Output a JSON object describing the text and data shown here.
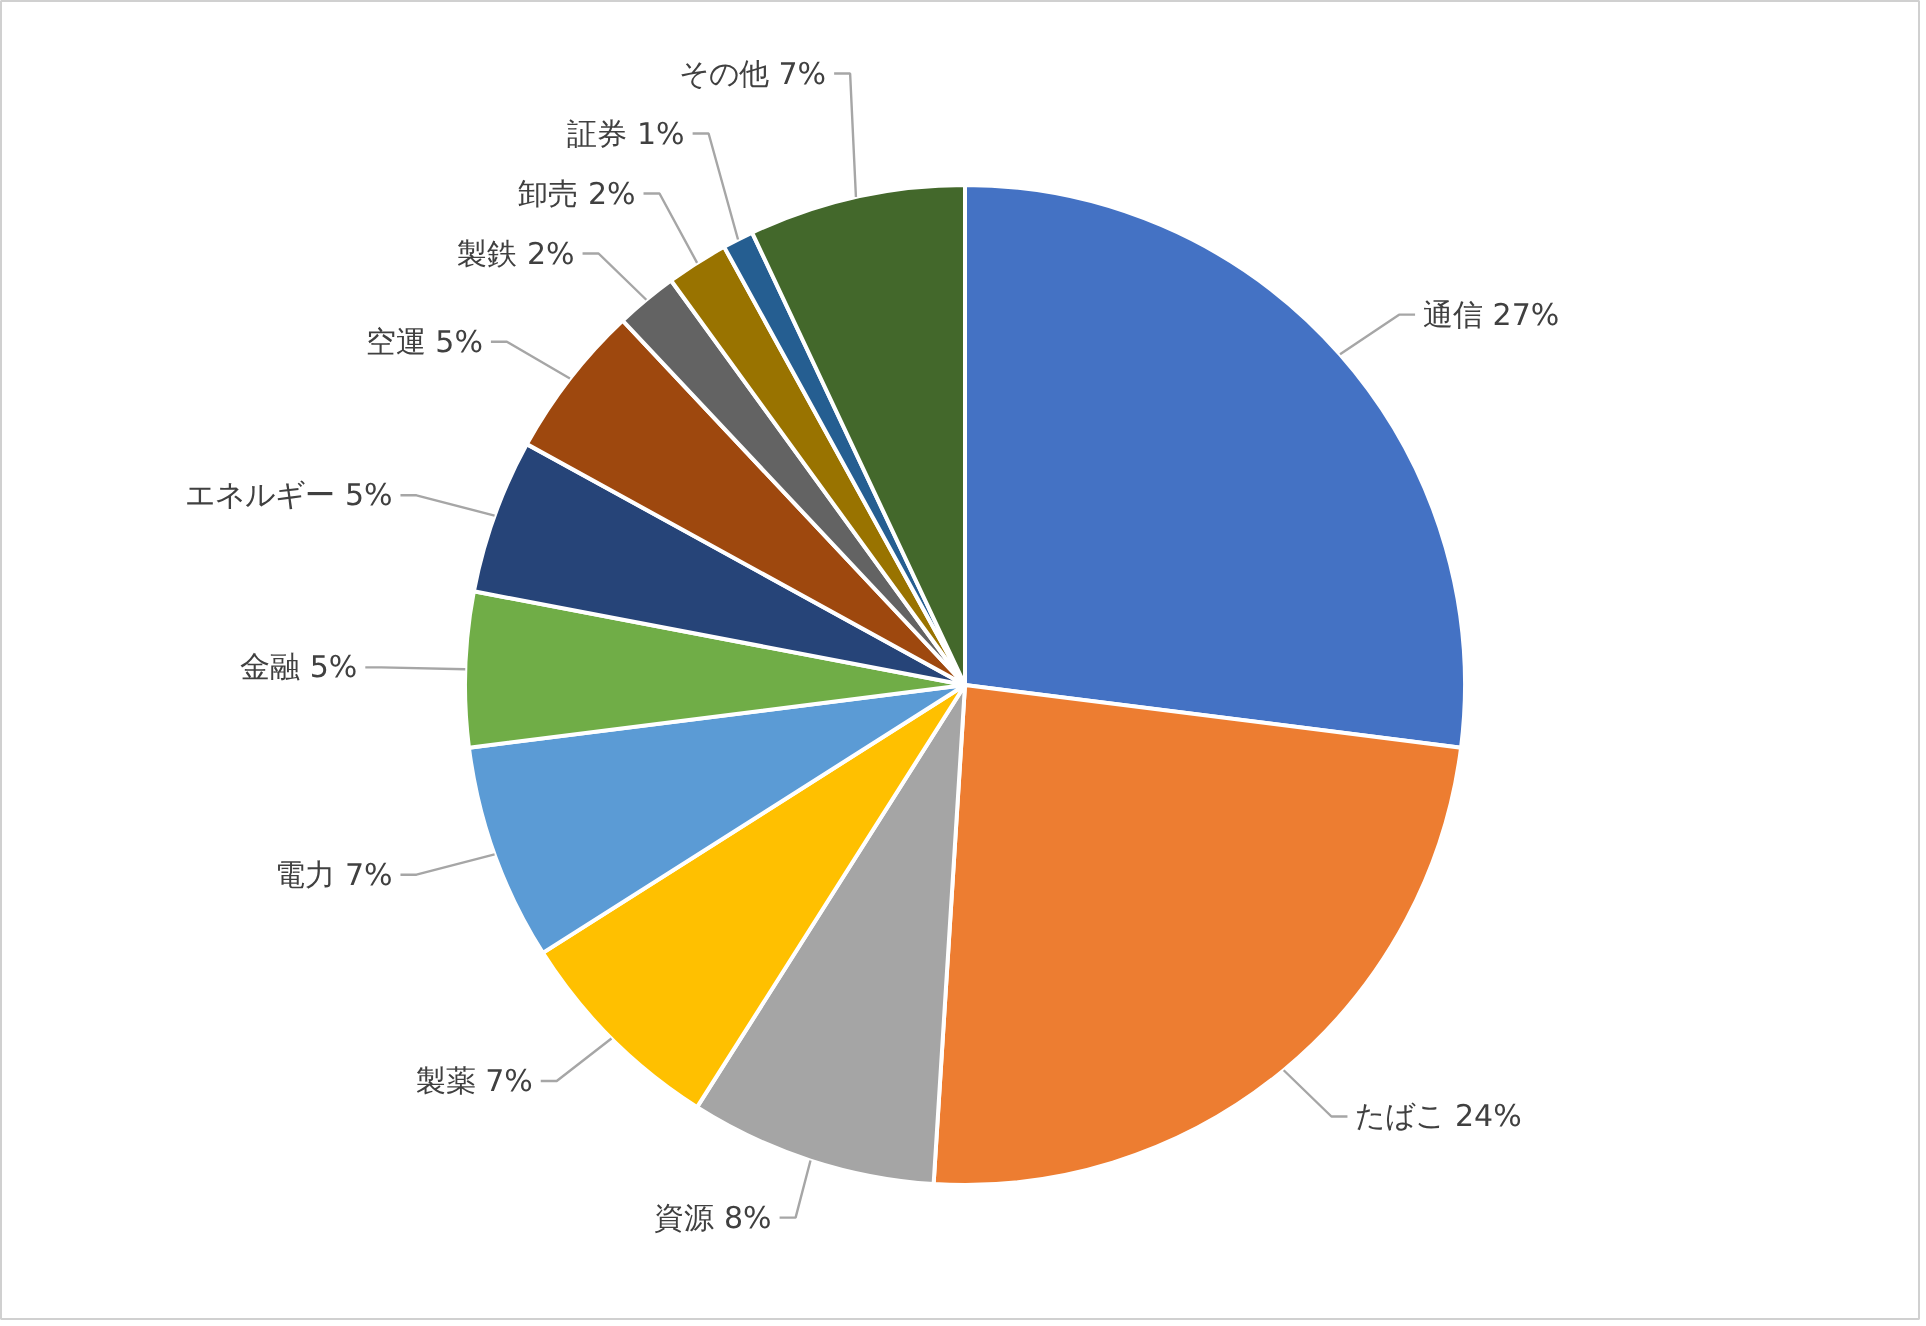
{
  "chart_data": {
    "type": "pie",
    "categories": [
      "通信",
      "たばこ",
      "資源",
      "製薬",
      "電力",
      "金融",
      "エネルギー",
      "空運",
      "製鉄",
      "卸売",
      "証券",
      "その他"
    ],
    "values": [
      27,
      24,
      8,
      7,
      7,
      5,
      5,
      5,
      2,
      2,
      1,
      7
    ],
    "value_labels": [
      "27%",
      "24%",
      "8%",
      "7%",
      "7%",
      "5%",
      "5%",
      "5%",
      "2%",
      "2%",
      "1%",
      "7%"
    ],
    "colors": [
      "#4472c4",
      "#ed7d31",
      "#a5a5a5",
      "#ffc000",
      "#5b9bd5",
      "#70ad47",
      "#264478",
      "#9e480e",
      "#636363",
      "#997300",
      "#255e91",
      "#43682b"
    ],
    "legend": false
  }
}
